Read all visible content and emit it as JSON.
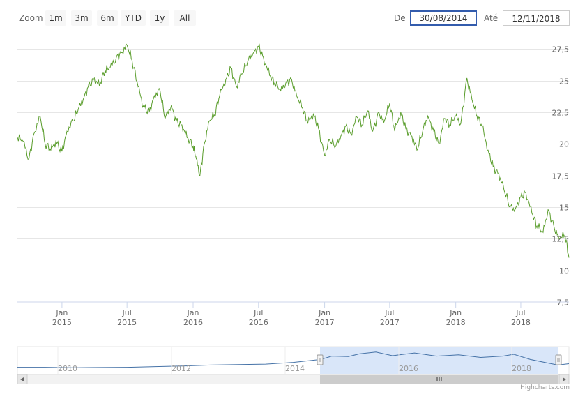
{
  "toolbar": {
    "zoom_label": "Zoom",
    "buttons": [
      "1m",
      "3m",
      "6m",
      "YTD",
      "1y",
      "All"
    ],
    "from_label": "De",
    "from_value": "30/08/2014",
    "to_label": "Até",
    "to_value": "12/11/2018"
  },
  "credit": "Highcharts.com",
  "colors": {
    "series": "#5a9d2c",
    "navigator_line": "#4572a7",
    "navigator_mask": "#cfe0f7"
  },
  "chart_data": {
    "type": "line",
    "title": "",
    "xlabel": "",
    "ylabel": "",
    "ylim": [
      7.5,
      28.5
    ],
    "yticks": [
      7.5,
      10,
      12.5,
      15,
      17.5,
      20,
      22.5,
      25,
      27.5
    ],
    "ytick_labels": [
      "7,5",
      "10",
      "12,5",
      "15",
      "17,5",
      "20",
      "22,5",
      "25",
      "27,5"
    ],
    "xlim": [
      "2014-08-30",
      "2018-11-12"
    ],
    "xticks": [
      {
        "date": "2015-01-01",
        "month": "Jan",
        "year": "2015"
      },
      {
        "date": "2015-07-01",
        "month": "Jul",
        "year": "2015"
      },
      {
        "date": "2016-01-01",
        "month": "Jan",
        "year": "2016"
      },
      {
        "date": "2016-07-01",
        "month": "Jul",
        "year": "2016"
      },
      {
        "date": "2017-01-01",
        "month": "Jan",
        "year": "2017"
      },
      {
        "date": "2017-07-01",
        "month": "Jul",
        "year": "2017"
      },
      {
        "date": "2018-01-01",
        "month": "Jan",
        "year": "2018"
      },
      {
        "date": "2018-07-01",
        "month": "Jul",
        "year": "2018"
      }
    ],
    "grid": true,
    "legend": "none",
    "series": [
      {
        "x": [
          "2014-08-30",
          "2014-09-15",
          "2014-10-01",
          "2014-10-15",
          "2014-11-01",
          "2014-11-15",
          "2014-12-01",
          "2014-12-15",
          "2015-01-01",
          "2015-01-15",
          "2015-02-01",
          "2015-02-15",
          "2015-03-01",
          "2015-03-15",
          "2015-04-01",
          "2015-04-15",
          "2015-05-01",
          "2015-05-15",
          "2015-06-01",
          "2015-06-15",
          "2015-07-01",
          "2015-07-15",
          "2015-08-01",
          "2015-08-15",
          "2015-09-01",
          "2015-09-15",
          "2015-10-01",
          "2015-10-15",
          "2015-11-01",
          "2015-11-15",
          "2015-12-01",
          "2015-12-15",
          "2016-01-01",
          "2016-01-10",
          "2016-01-20",
          "2016-02-01",
          "2016-02-15",
          "2016-03-01",
          "2016-03-15",
          "2016-04-01",
          "2016-04-15",
          "2016-05-01",
          "2016-05-15",
          "2016-06-01",
          "2016-06-15",
          "2016-07-01",
          "2016-07-15",
          "2016-08-01",
          "2016-08-15",
          "2016-09-01",
          "2016-09-15",
          "2016-10-01",
          "2016-10-15",
          "2016-11-01",
          "2016-11-15",
          "2016-12-01",
          "2016-12-15",
          "2017-01-01",
          "2017-01-15",
          "2017-02-01",
          "2017-02-15",
          "2017-03-01",
          "2017-03-15",
          "2017-04-01",
          "2017-04-15",
          "2017-05-01",
          "2017-05-15",
          "2017-06-01",
          "2017-06-15",
          "2017-07-01",
          "2017-07-15",
          "2017-08-01",
          "2017-08-15",
          "2017-09-01",
          "2017-09-15",
          "2017-10-01",
          "2017-10-15",
          "2017-11-01",
          "2017-11-15",
          "2017-12-01",
          "2017-12-15",
          "2018-01-01",
          "2018-01-15",
          "2018-02-01",
          "2018-02-15",
          "2018-03-01",
          "2018-03-15",
          "2018-04-01",
          "2018-04-15",
          "2018-05-01",
          "2018-05-15",
          "2018-06-01",
          "2018-06-15",
          "2018-07-01",
          "2018-07-15",
          "2018-08-01",
          "2018-08-15",
          "2018-09-01",
          "2018-09-15",
          "2018-10-01",
          "2018-10-15",
          "2018-11-01",
          "2018-11-12"
        ],
        "values": [
          20.5,
          20.2,
          18.8,
          20.8,
          22.2,
          20.0,
          19.5,
          20.2,
          19.4,
          21.0,
          21.8,
          22.7,
          23.5,
          24.5,
          25.2,
          24.6,
          25.8,
          26.0,
          26.8,
          27.2,
          27.8,
          26.6,
          24.5,
          23.0,
          22.5,
          23.8,
          24.2,
          22.0,
          23.0,
          21.8,
          21.5,
          20.5,
          19.8,
          18.8,
          17.5,
          20.0,
          21.8,
          22.3,
          23.8,
          25.1,
          26.0,
          24.5,
          25.5,
          26.5,
          27.1,
          27.7,
          26.8,
          25.4,
          24.8,
          24.2,
          24.8,
          25.1,
          23.8,
          22.8,
          21.6,
          22.4,
          21.2,
          19.1,
          20.3,
          19.8,
          20.6,
          21.4,
          20.8,
          22.1,
          21.5,
          22.6,
          21.0,
          22.5,
          21.7,
          23.2,
          21.0,
          22.5,
          21.2,
          20.6,
          19.5,
          21.0,
          22.2,
          21.0,
          20.0,
          22.0,
          21.5,
          22.2,
          21.6,
          25.2,
          23.5,
          22.2,
          21.4,
          19.5,
          18.2,
          17.6,
          16.4,
          15.0,
          14.8,
          15.8,
          16.2,
          14.5,
          13.5,
          13.0,
          14.8,
          13.5,
          12.5,
          12.8,
          11.0
        ]
      }
    ]
  },
  "navigator": {
    "xticks": [
      "2010",
      "2012",
      "2014",
      "2016",
      "2018"
    ]
  }
}
